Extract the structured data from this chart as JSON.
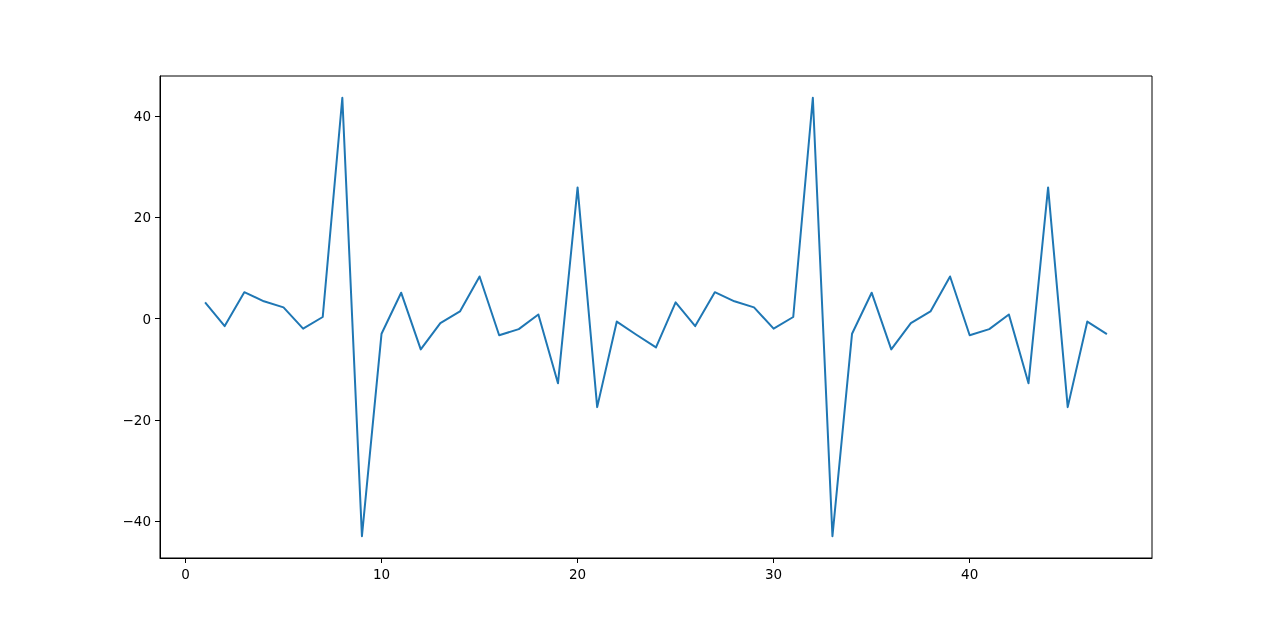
{
  "chart_data": {
    "type": "line",
    "x": [
      1,
      2,
      3,
      4,
      5,
      6,
      7,
      8,
      9,
      10,
      11,
      12,
      13,
      14,
      15,
      16,
      17,
      18,
      19,
      20,
      21,
      22,
      23,
      24,
      25,
      26,
      27,
      28,
      29,
      30,
      31,
      32,
      33,
      34,
      35,
      36,
      37,
      38,
      39,
      40,
      41,
      42,
      43,
      44,
      45,
      46,
      47
    ],
    "series": [
      {
        "color": "#1f77b4",
        "values": [
          3.2,
          -1.5,
          5.2,
          3.4,
          2.2,
          -2.0,
          0.3,
          43.6,
          -43.0,
          -3.0,
          5.1,
          -6.1,
          -0.9,
          1.4,
          8.3,
          -3.3,
          -2.1,
          0.8,
          -12.8,
          25.9,
          -17.5,
          -0.6,
          -3.2,
          -5.7,
          3.2,
          -1.5,
          5.2,
          3.4,
          2.2,
          -2.0,
          0.3,
          43.6,
          -43.0,
          -3.0,
          5.1,
          -6.1,
          -0.9,
          1.4,
          8.3,
          -3.3,
          -2.1,
          0.8,
          -12.8,
          25.9,
          -17.5,
          -0.6,
          -3.1
        ]
      }
    ],
    "xlim": [
      -1.3,
      49.3
    ],
    "xticks": [
      0,
      10,
      20,
      30,
      40
    ],
    "ylim": [
      -47.3,
      47.9
    ],
    "yticks": [
      {
        "value": -40,
        "label": "−40"
      },
      {
        "value": -20,
        "label": "−20"
      },
      0,
      20,
      40
    ],
    "grid": false,
    "marker": "none",
    "line_style": "solid"
  }
}
